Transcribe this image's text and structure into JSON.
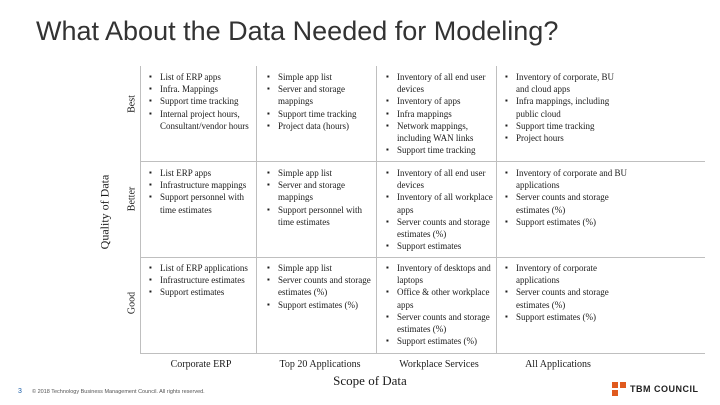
{
  "title": "What About the Data Needed for Modeling?",
  "y_axis": {
    "label": "Quality of Data",
    "rows": [
      "Best",
      "Better",
      "Good"
    ]
  },
  "x_axis": {
    "label": "Scope of Data",
    "columns": [
      "Corporate ERP",
      "Top 20 Applications",
      "Workplace Services",
      "All Applications"
    ]
  },
  "cells": {
    "best": {
      "corporate_erp": [
        "List of ERP apps",
        "Infra. Mappings",
        "Support time tracking",
        "Internal project hours, Consultant/vendor hours"
      ],
      "top20": [
        "Simple app list",
        "Server and storage mappings",
        "Support time tracking",
        "Project data (hours)"
      ],
      "workplace": [
        "Inventory of all end user devices",
        "Inventory of apps",
        "Infra mappings",
        "Network mappings, including WAN links",
        "Support time tracking"
      ],
      "all_apps": [
        "Inventory of corporate, BU and cloud apps",
        "Infra mappings, including public cloud",
        "Support time tracking",
        "Project hours"
      ]
    },
    "better": {
      "corporate_erp": [
        "List ERP apps",
        "Infrastructure mappings",
        "Support personnel with time estimates"
      ],
      "top20": [
        "Simple app list",
        "Server and storage mappings",
        "Support personnel with time estimates"
      ],
      "workplace": [
        "Inventory of all end user devices",
        "Inventory of all workplace apps",
        "Server counts and storage estimates (%)",
        "Support estimates"
      ],
      "all_apps": [
        "Inventory of corporate and BU applications",
        "Server counts and storage estimates (%)",
        "Support estimates (%)"
      ]
    },
    "good": {
      "corporate_erp": [
        "List of ERP applications",
        "Infrastructure estimates",
        "Support estimates"
      ],
      "top20": [
        "Simple app list",
        "Server counts and storage estimates (%)",
        "Support estimates (%)"
      ],
      "workplace": [
        "Inventory of desktops and laptops",
        "Office & other workplace apps",
        "Server counts and storage estimates (%)",
        "Support estimates (%)"
      ],
      "all_apps": [
        "Inventory of corporate applications",
        "Server counts and storage estimates (%)",
        "Support estimates (%)"
      ]
    }
  },
  "footer": {
    "page_number": "3",
    "copyright": "© 2018 Technology Business Management Council. All rights reserved.",
    "logo_text": "TBM COUNCIL",
    "logo_color": "#e05a1f"
  }
}
